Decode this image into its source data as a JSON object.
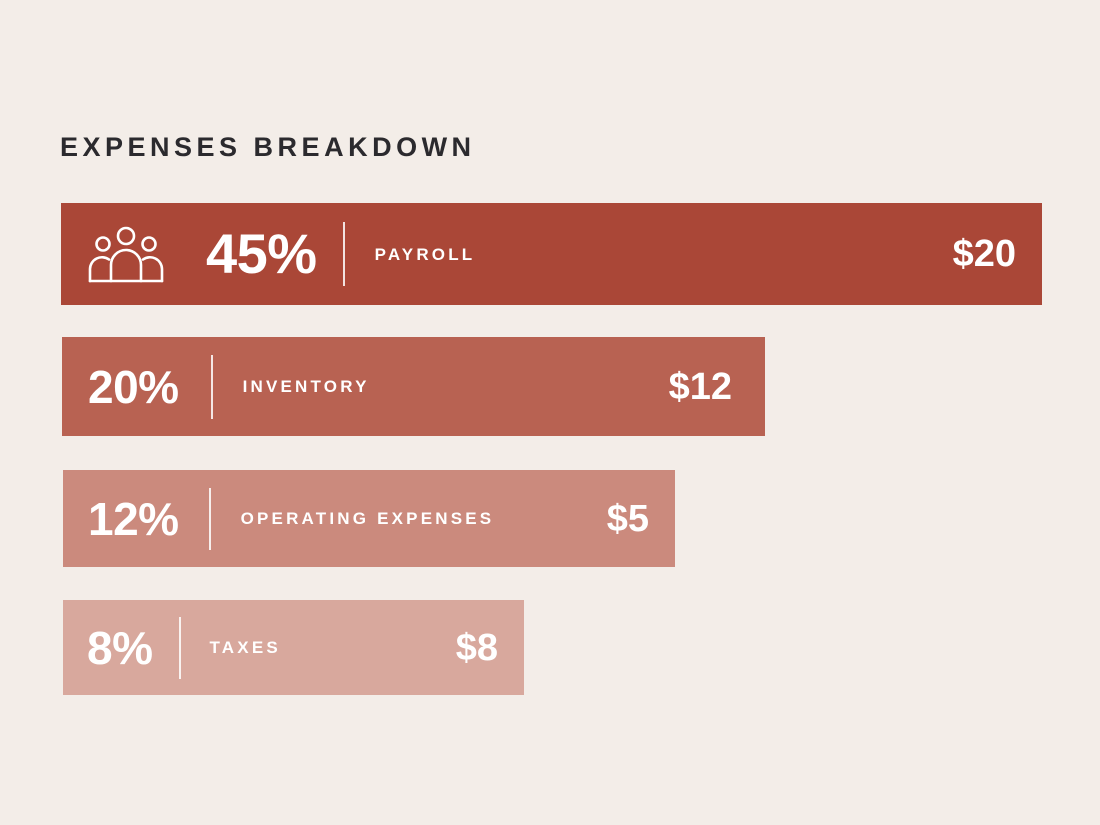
{
  "chart_data": {
    "type": "bar",
    "orientation": "horizontal",
    "title": "EXPENSES BREAKDOWN",
    "categories": [
      "PAYROLL",
      "INVENTORY",
      "OPERATING EXPENSES",
      "TAXES"
    ],
    "percent_labels": [
      "45%",
      "20%",
      "12%",
      "8%"
    ],
    "value_labels": [
      "$20",
      "$12",
      "$5",
      "$8"
    ],
    "percent_values": [
      45,
      20,
      12,
      8
    ],
    "bar_colors": [
      "#aa4737",
      "#b86252",
      "#cb8a7d",
      "#d8a89d"
    ],
    "icons": [
      "people-icon",
      "",
      "",
      ""
    ]
  }
}
